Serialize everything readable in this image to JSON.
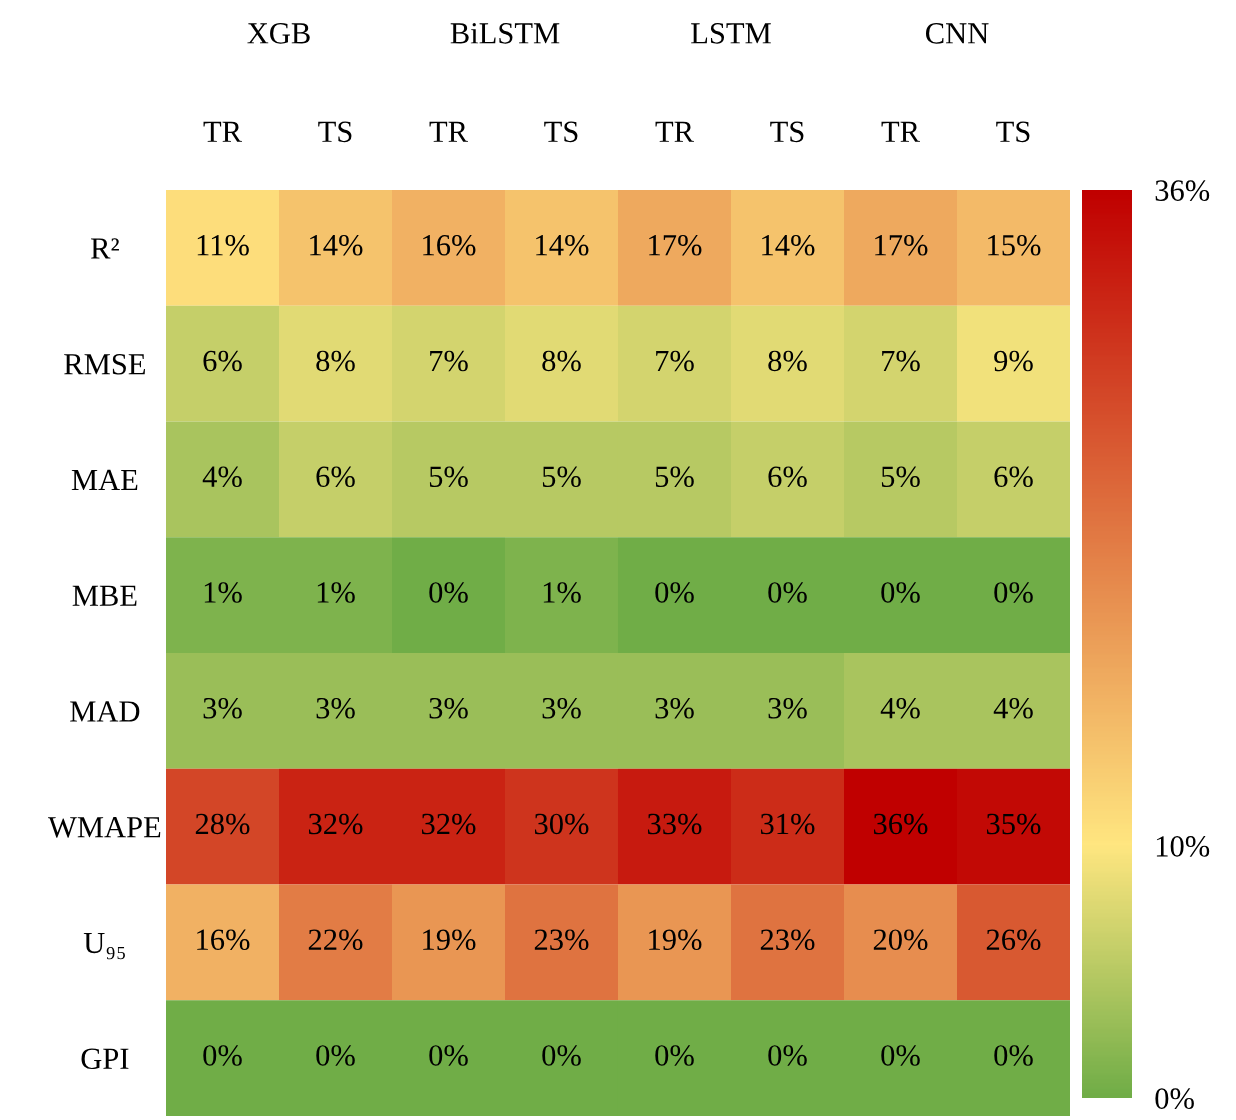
{
  "chart_data": {
    "type": "heatmap",
    "categories": [
      "TR",
      "TS",
      "TR",
      "TS",
      "TR",
      "TS",
      "TR",
      "TS"
    ],
    "y_categories": [
      "R²",
      "RMSE",
      "MAE",
      "MBE",
      "MAD",
      "WMAPE",
      "U₉₅",
      "GPI"
    ],
    "cells": [
      [
        11,
        14,
        16,
        14,
        17,
        14,
        17,
        15
      ],
      [
        6,
        8,
        7,
        8,
        7,
        8,
        7,
        9
      ],
      [
        4,
        6,
        5,
        5,
        5,
        6,
        5,
        6
      ],
      [
        1,
        1,
        0,
        1,
        0,
        0,
        0,
        0
      ],
      [
        3,
        3,
        3,
        3,
        3,
        3,
        4,
        4
      ],
      [
        28,
        32,
        32,
        30,
        33,
        31,
        36,
        35
      ],
      [
        16,
        22,
        19,
        23,
        19,
        23,
        20,
        26
      ],
      [
        0,
        0,
        0,
        0,
        0,
        0,
        0,
        0
      ]
    ],
    "cell_labels": [
      [
        "11%",
        "14%",
        "16%",
        "14%",
        "17%",
        "14%",
        "17%",
        "15%"
      ],
      [
        "6%",
        "8%",
        "7%",
        "8%",
        "7%",
        "8%",
        "7%",
        "9%"
      ],
      [
        "4%",
        "6%",
        "5%",
        "5%",
        "5%",
        "6%",
        "5%",
        "6%"
      ],
      [
        "1%",
        "1%",
        "0%",
        "1%",
        "0%",
        "0%",
        "0%",
        "0%"
      ],
      [
        "3%",
        "3%",
        "3%",
        "3%",
        "3%",
        "3%",
        "4%",
        "4%"
      ],
      [
        "28%",
        "32%",
        "32%",
        "30%",
        "33%",
        "31%",
        "36%",
        "35%"
      ],
      [
        "16%",
        "22%",
        "19%",
        "23%",
        "19%",
        "23%",
        "20%",
        "26%"
      ],
      [
        "0%",
        "0%",
        "0%",
        "0%",
        "0%",
        "0%",
        "0%",
        "0%"
      ]
    ],
    "clim": [
      0,
      36
    ],
    "cticks": [
      {
        "value": 0,
        "label": "0%"
      },
      {
        "value": 10,
        "label": "10%"
      },
      {
        "value": 36,
        "label": "36%"
      }
    ],
    "colors": [
      "#70ad47",
      "#ffe680",
      "#c00000"
    ],
    "annotations": [
      "XGB",
      "BiLSTM",
      "LSTM",
      "CNN"
    ]
  }
}
